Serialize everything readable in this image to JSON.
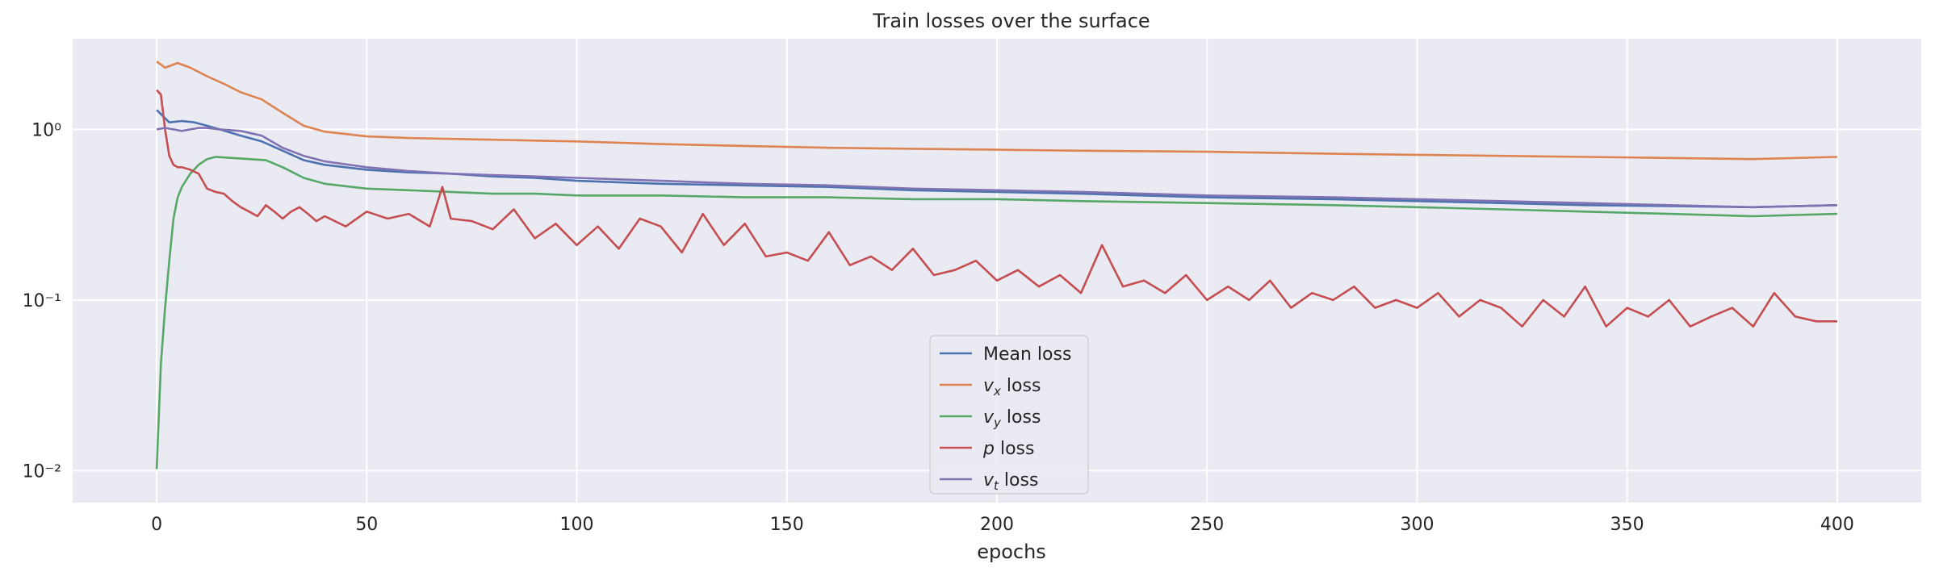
{
  "chart_data": {
    "type": "line",
    "title": "Train losses over the surface",
    "xlabel": "epochs",
    "ylabel": "",
    "xlim": [
      -20,
      420
    ],
    "ylim": [
      0.0065,
      3.4
    ],
    "yscale": "log",
    "x_ticks": [
      0,
      50,
      100,
      150,
      200,
      250,
      300,
      350,
      400
    ],
    "y_ticks": [
      {
        "value": 0.01,
        "label": "10⁻²"
      },
      {
        "value": 0.1,
        "label": "10⁻¹"
      },
      {
        "value": 1,
        "label": "10⁰"
      }
    ],
    "grid": true,
    "legend": "lower-center",
    "background": "#eaeaf2",
    "series": [
      {
        "name": "Mean loss",
        "color": "#4c72b0",
        "x": [
          0,
          3,
          6,
          9,
          12,
          15,
          20,
          25,
          30,
          35,
          40,
          50,
          60,
          70,
          80,
          90,
          100,
          120,
          140,
          160,
          180,
          200,
          220,
          250,
          280,
          300,
          320,
          340,
          360,
          380,
          400
        ],
        "y": [
          1.3,
          1.1,
          1.12,
          1.1,
          1.05,
          1.0,
          0.92,
          0.85,
          0.75,
          0.66,
          0.62,
          0.58,
          0.56,
          0.55,
          0.53,
          0.52,
          0.5,
          0.48,
          0.47,
          0.46,
          0.44,
          0.43,
          0.42,
          0.4,
          0.39,
          0.38,
          0.37,
          0.36,
          0.355,
          0.35,
          0.36
        ]
      },
      {
        "name": "v_x loss",
        "color": "#dd8452",
        "x": [
          0,
          2,
          5,
          8,
          12,
          16,
          20,
          25,
          30,
          35,
          40,
          50,
          60,
          70,
          80,
          90,
          100,
          120,
          140,
          160,
          180,
          200,
          220,
          250,
          280,
          300,
          320,
          340,
          360,
          380,
          400
        ],
        "y": [
          2.5,
          2.3,
          2.45,
          2.3,
          2.05,
          1.85,
          1.65,
          1.5,
          1.25,
          1.05,
          0.97,
          0.91,
          0.89,
          0.88,
          0.87,
          0.86,
          0.85,
          0.82,
          0.8,
          0.78,
          0.77,
          0.76,
          0.75,
          0.74,
          0.72,
          0.71,
          0.7,
          0.69,
          0.68,
          0.67,
          0.69
        ]
      },
      {
        "name": "v_y loss",
        "color": "#55a868",
        "x": [
          0,
          1,
          2,
          3,
          4,
          5,
          6,
          8,
          10,
          12,
          14,
          18,
          22,
          26,
          30,
          35,
          40,
          50,
          60,
          70,
          80,
          90,
          100,
          120,
          140,
          160,
          180,
          200,
          220,
          250,
          280,
          300,
          320,
          340,
          360,
          380,
          400
        ],
        "y": [
          0.0102,
          0.042,
          0.09,
          0.17,
          0.3,
          0.4,
          0.46,
          0.55,
          0.62,
          0.67,
          0.69,
          0.68,
          0.67,
          0.66,
          0.6,
          0.52,
          0.48,
          0.45,
          0.44,
          0.43,
          0.42,
          0.42,
          0.41,
          0.41,
          0.4,
          0.4,
          0.39,
          0.39,
          0.38,
          0.37,
          0.36,
          0.35,
          0.34,
          0.33,
          0.32,
          0.31,
          0.32
        ]
      },
      {
        "name": "p loss",
        "color": "#c44e52",
        "x": [
          0,
          1,
          2,
          3,
          4,
          5,
          6,
          8,
          10,
          12,
          14,
          16,
          18,
          20,
          22,
          24,
          26,
          28,
          30,
          32,
          34,
          36,
          38,
          40,
          45,
          50,
          55,
          60,
          65,
          68,
          70,
          75,
          80,
          85,
          90,
          95,
          100,
          105,
          110,
          115,
          120,
          125,
          130,
          135,
          140,
          145,
          150,
          155,
          160,
          165,
          170,
          175,
          180,
          185,
          190,
          195,
          200,
          205,
          210,
          215,
          220,
          225,
          230,
          235,
          240,
          245,
          250,
          255,
          260,
          265,
          270,
          275,
          280,
          285,
          290,
          295,
          300,
          305,
          310,
          315,
          320,
          325,
          330,
          335,
          340,
          345,
          350,
          355,
          360,
          365,
          370,
          375,
          380,
          385,
          390,
          395,
          400
        ],
        "y": [
          1.7,
          1.6,
          1.0,
          0.7,
          0.62,
          0.6,
          0.6,
          0.58,
          0.55,
          0.45,
          0.43,
          0.42,
          0.38,
          0.35,
          0.33,
          0.31,
          0.36,
          0.33,
          0.3,
          0.33,
          0.35,
          0.32,
          0.29,
          0.31,
          0.27,
          0.33,
          0.3,
          0.32,
          0.27,
          0.46,
          0.3,
          0.29,
          0.26,
          0.34,
          0.23,
          0.28,
          0.21,
          0.27,
          0.2,
          0.3,
          0.27,
          0.19,
          0.32,
          0.21,
          0.28,
          0.18,
          0.19,
          0.17,
          0.25,
          0.16,
          0.18,
          0.15,
          0.2,
          0.14,
          0.15,
          0.17,
          0.13,
          0.15,
          0.12,
          0.14,
          0.11,
          0.21,
          0.12,
          0.13,
          0.11,
          0.14,
          0.1,
          0.12,
          0.1,
          0.13,
          0.09,
          0.11,
          0.1,
          0.12,
          0.09,
          0.1,
          0.09,
          0.11,
          0.08,
          0.1,
          0.09,
          0.07,
          0.1,
          0.08,
          0.12,
          0.07,
          0.09,
          0.08,
          0.1,
          0.07,
          0.08,
          0.09,
          0.07,
          0.11,
          0.08,
          0.075,
          0.075
        ]
      },
      {
        "name": "v_t loss",
        "color": "#8172b3",
        "x": [
          0,
          2,
          4,
          6,
          8,
          10,
          12,
          15,
          20,
          25,
          30,
          35,
          40,
          50,
          60,
          70,
          80,
          90,
          100,
          120,
          140,
          160,
          180,
          200,
          220,
          250,
          280,
          300,
          320,
          340,
          360,
          380,
          400
        ],
        "y": [
          1.0,
          1.02,
          1.0,
          0.98,
          1.0,
          1.02,
          1.02,
          1.0,
          0.98,
          0.92,
          0.78,
          0.7,
          0.65,
          0.6,
          0.57,
          0.55,
          0.54,
          0.53,
          0.52,
          0.5,
          0.48,
          0.47,
          0.45,
          0.44,
          0.43,
          0.41,
          0.4,
          0.39,
          0.38,
          0.37,
          0.36,
          0.35,
          0.36
        ]
      }
    ]
  },
  "legend": {
    "items": [
      {
        "italic": "v",
        "sub": "x",
        "suffix": " loss"
      },
      {
        "italic": "v",
        "sub": "y",
        "suffix": " loss"
      },
      {
        "italic": "p",
        "sub": "",
        "suffix": " loss"
      },
      {
        "italic": "v",
        "sub": "t",
        "suffix": " loss"
      }
    ]
  }
}
